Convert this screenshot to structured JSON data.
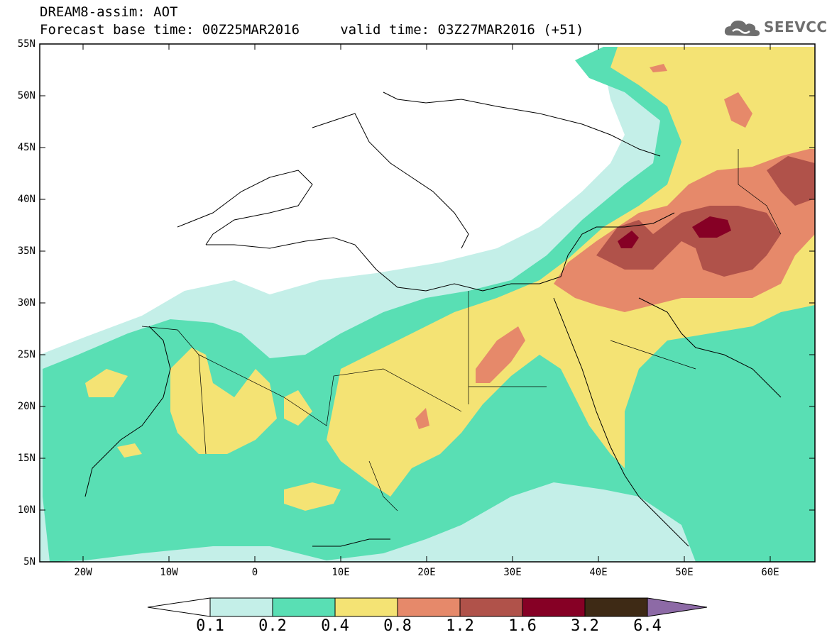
{
  "header": {
    "title_line_1": "DREAM8-assim: AOT",
    "title_line_2": "Forecast base time: 00Z25MAR2016     valid time: 03Z27MAR2016 (+51)"
  },
  "logo": {
    "text": "SEEVCCC",
    "icon": "cloud-icon",
    "color": "#6e6e6e"
  },
  "map": {
    "lat_labels": [
      "55N",
      "50N",
      "45N",
      "40N",
      "35N",
      "30N",
      "25N",
      "20N",
      "15N",
      "10N",
      "5N"
    ],
    "lon_labels": [
      "20W",
      "10W",
      "0",
      "10E",
      "20E",
      "30E",
      "40E",
      "50E",
      "60E"
    ]
  },
  "colorbar": {
    "labels": [
      "0.1",
      "0.2",
      "0.4",
      "0.8",
      "1.2",
      "1.6",
      "3.2",
      "6.4"
    ],
    "colors": [
      "#ffffff",
      "#c4efe8",
      "#59dfb4",
      "#f4e374",
      "#e6896a",
      "#b0524a",
      "#860025",
      "#3e2a15",
      "#8d6aa6"
    ]
  }
}
